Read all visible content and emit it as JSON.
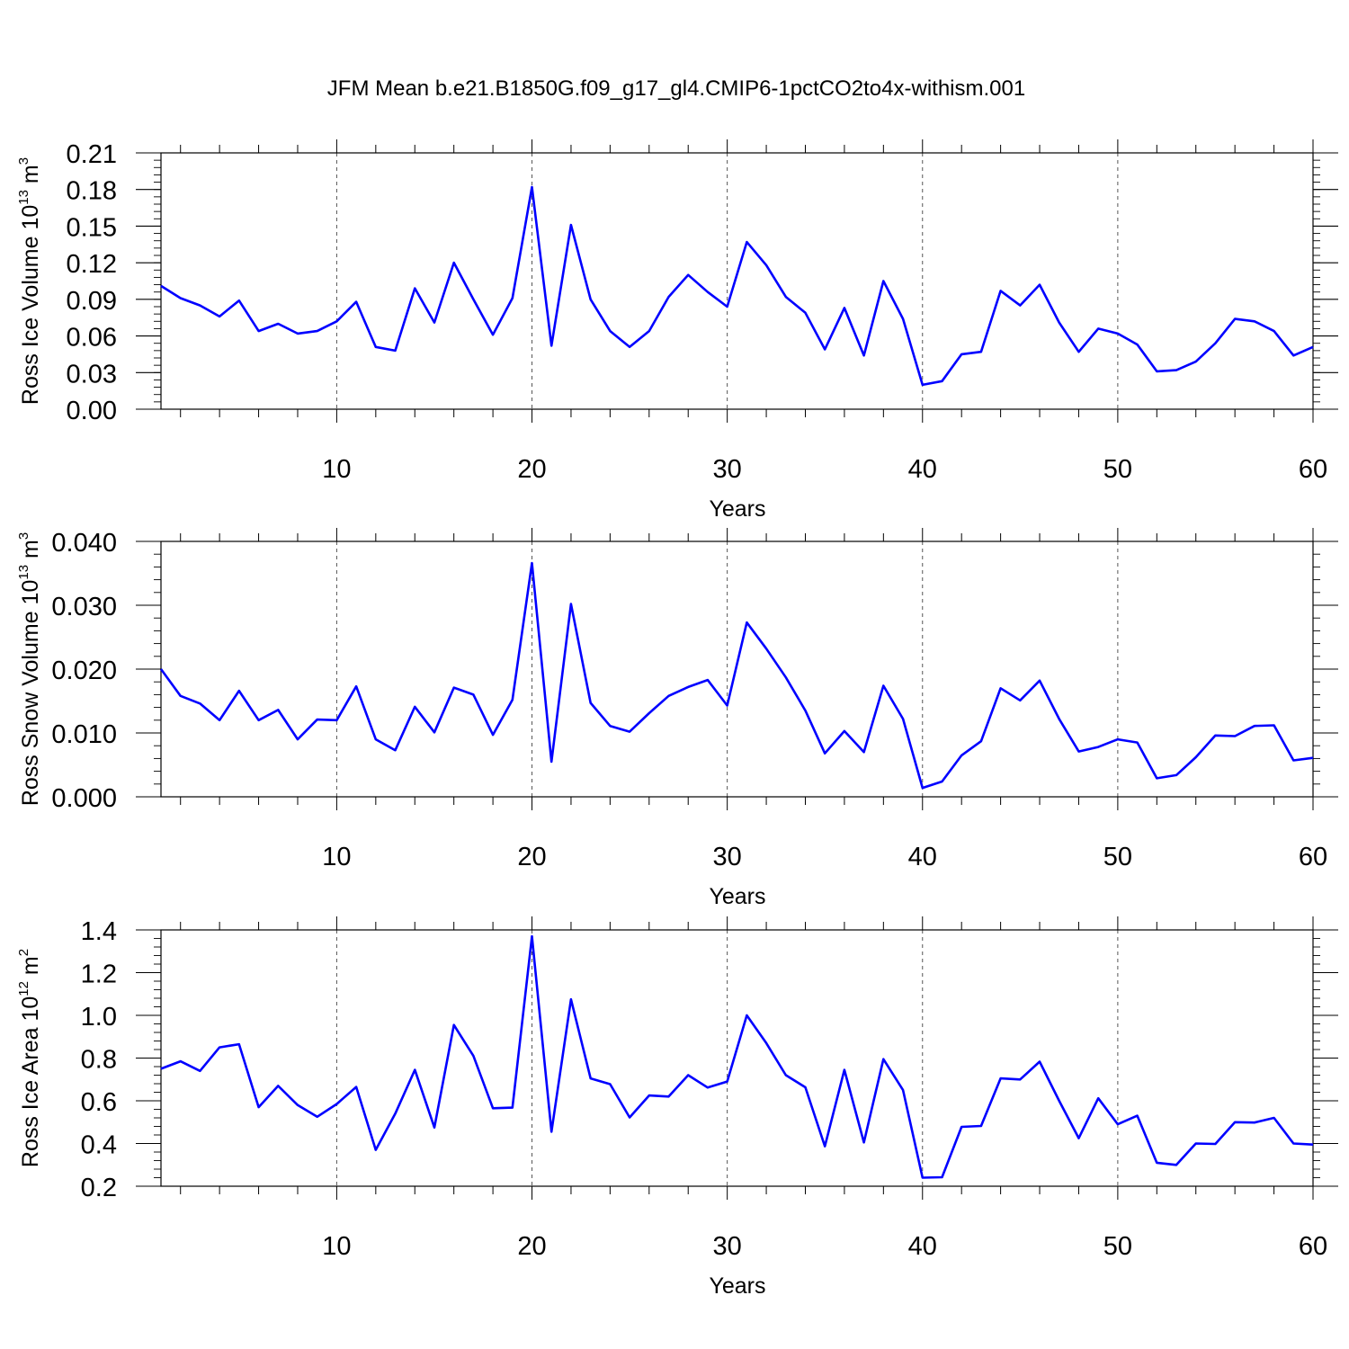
{
  "figure_title": "JFM Mean b.e21.B1850G.f09_g17_gl4.CMIP6-1pctCO2to4x-withism.001",
  "colors": {
    "line": "#0000ff",
    "axis": "#000000",
    "grid": "#555555"
  },
  "chart_data": [
    {
      "type": "line",
      "name": "ice-volume",
      "ylabel_text": "Ross Ice Volume 10",
      "ylabel_exp": "13",
      "ylabel_unit": " m",
      "ylabel_unit_exp": "3",
      "xlabel": "Years",
      "xlim": [
        1,
        60
      ],
      "ylim": [
        0,
        0.21
      ],
      "x_ticks": [
        10,
        20,
        30,
        40,
        50,
        60
      ],
      "x_tick_labels": [
        "10",
        "20",
        "30",
        "40",
        "50",
        "60"
      ],
      "y_ticks": [
        0,
        0.03,
        0.06,
        0.09,
        0.12,
        0.15,
        0.18,
        0.21
      ],
      "y_tick_labels": [
        "0.00",
        "0.03",
        "0.06",
        "0.09",
        "0.12",
        "0.15",
        "0.18",
        "0.21"
      ],
      "y_minor_step": 0.006,
      "grid": "vertical dashed at major x ticks",
      "x": [
        1,
        2,
        3,
        4,
        5,
        6,
        7,
        8,
        9,
        10,
        11,
        12,
        13,
        14,
        15,
        16,
        17,
        18,
        19,
        20,
        21,
        22,
        23,
        24,
        25,
        26,
        27,
        28,
        29,
        30,
        31,
        32,
        33,
        34,
        35,
        36,
        37,
        38,
        39,
        40,
        41,
        42,
        43,
        44,
        45,
        46,
        47,
        48,
        49,
        50,
        51,
        52,
        53,
        54,
        55,
        56,
        57,
        58,
        59,
        60
      ],
      "values": [
        0.101,
        0.091,
        0.085,
        0.076,
        0.089,
        0.064,
        0.07,
        0.062,
        0.064,
        0.072,
        0.088,
        0.051,
        0.048,
        0.099,
        0.071,
        0.12,
        0.09,
        0.061,
        0.091,
        0.182,
        0.052,
        0.151,
        0.09,
        0.064,
        0.051,
        0.064,
        0.092,
        0.11,
        0.096,
        0.084,
        0.137,
        0.118,
        0.092,
        0.079,
        0.049,
        0.083,
        0.044,
        0.105,
        0.074,
        0.02,
        0.023,
        0.045,
        0.047,
        0.097,
        0.085,
        0.102,
        0.071,
        0.047,
        0.066,
        0.062,
        0.053,
        0.031,
        0.032,
        0.039,
        0.054,
        0.074,
        0.072,
        0.064,
        0.044,
        0.051
      ]
    },
    {
      "type": "line",
      "name": "snow-volume",
      "ylabel_text": "Ross Snow Volume 10",
      "ylabel_exp": "13",
      "ylabel_unit": " m",
      "ylabel_unit_exp": "3",
      "xlabel": "Years",
      "xlim": [
        1,
        60
      ],
      "ylim": [
        0,
        0.04
      ],
      "x_ticks": [
        10,
        20,
        30,
        40,
        50,
        60
      ],
      "x_tick_labels": [
        "10",
        "20",
        "30",
        "40",
        "50",
        "60"
      ],
      "y_ticks": [
        0,
        0.01,
        0.02,
        0.03,
        0.04
      ],
      "y_tick_labels": [
        "0.000",
        "0.010",
        "0.020",
        "0.030",
        "0.040"
      ],
      "y_minor_step": 0.002,
      "grid": "vertical dashed at major x ticks",
      "x": [
        1,
        2,
        3,
        4,
        5,
        6,
        7,
        8,
        9,
        10,
        11,
        12,
        13,
        14,
        15,
        16,
        17,
        18,
        19,
        20,
        21,
        22,
        23,
        24,
        25,
        26,
        27,
        28,
        29,
        30,
        31,
        32,
        33,
        34,
        35,
        36,
        37,
        38,
        39,
        40,
        41,
        42,
        43,
        44,
        45,
        46,
        47,
        48,
        49,
        50,
        51,
        52,
        53,
        54,
        55,
        56,
        57,
        58,
        59,
        60
      ],
      "values": [
        0.02,
        0.0158,
        0.0146,
        0.012,
        0.0166,
        0.012,
        0.0136,
        0.009,
        0.0121,
        0.012,
        0.0173,
        0.009,
        0.0073,
        0.0141,
        0.0101,
        0.0171,
        0.016,
        0.0097,
        0.0152,
        0.0366,
        0.0055,
        0.0302,
        0.0147,
        0.0111,
        0.0102,
        0.0131,
        0.0158,
        0.0172,
        0.0183,
        0.0143,
        0.0273,
        0.0232,
        0.0187,
        0.0135,
        0.0068,
        0.0103,
        0.007,
        0.0174,
        0.0122,
        0.0014,
        0.0024,
        0.0065,
        0.0087,
        0.017,
        0.0151,
        0.0182,
        0.0122,
        0.0071,
        0.0078,
        0.009,
        0.0085,
        0.0029,
        0.0034,
        0.0062,
        0.0096,
        0.0095,
        0.0111,
        0.0112,
        0.0057,
        0.0061
      ]
    },
    {
      "type": "line",
      "name": "ice-area",
      "ylabel_text": "Ross Ice Area 10",
      "ylabel_exp": "12",
      "ylabel_unit": " m",
      "ylabel_unit_exp": "2",
      "xlabel": "Years",
      "xlim": [
        1,
        60
      ],
      "ylim": [
        0.2,
        1.4
      ],
      "x_ticks": [
        10,
        20,
        30,
        40,
        50,
        60
      ],
      "x_tick_labels": [
        "10",
        "20",
        "30",
        "40",
        "50",
        "60"
      ],
      "y_ticks": [
        0.2,
        0.4,
        0.6,
        0.8,
        1.0,
        1.2,
        1.4
      ],
      "y_tick_labels": [
        "0.2",
        "0.4",
        "0.6",
        "0.8",
        "1.0",
        "1.2",
        "1.4"
      ],
      "y_minor_step": 0.04,
      "grid": "vertical dashed at major x ticks",
      "x": [
        1,
        2,
        3,
        4,
        5,
        6,
        7,
        8,
        9,
        10,
        11,
        12,
        13,
        14,
        15,
        16,
        17,
        18,
        19,
        20,
        21,
        22,
        23,
        24,
        25,
        26,
        27,
        28,
        29,
        30,
        31,
        32,
        33,
        34,
        35,
        36,
        37,
        38,
        39,
        40,
        41,
        42,
        43,
        44,
        45,
        46,
        47,
        48,
        49,
        50,
        51,
        52,
        53,
        54,
        55,
        56,
        57,
        58,
        59,
        60
      ],
      "values": [
        0.75,
        0.785,
        0.74,
        0.85,
        0.865,
        0.57,
        0.67,
        0.58,
        0.525,
        0.585,
        0.665,
        0.37,
        0.54,
        0.745,
        0.475,
        0.955,
        0.81,
        0.565,
        0.568,
        1.37,
        0.455,
        1.075,
        0.705,
        0.678,
        0.522,
        0.625,
        0.62,
        0.72,
        0.662,
        0.69,
        1.0,
        0.87,
        0.72,
        0.663,
        0.387,
        0.745,
        0.405,
        0.795,
        0.65,
        0.24,
        0.242,
        0.478,
        0.482,
        0.705,
        0.7,
        0.783,
        0.6,
        0.425,
        0.612,
        0.49,
        0.53,
        0.31,
        0.3,
        0.4,
        0.398,
        0.5,
        0.498,
        0.52,
        0.4,
        0.395
      ]
    }
  ]
}
